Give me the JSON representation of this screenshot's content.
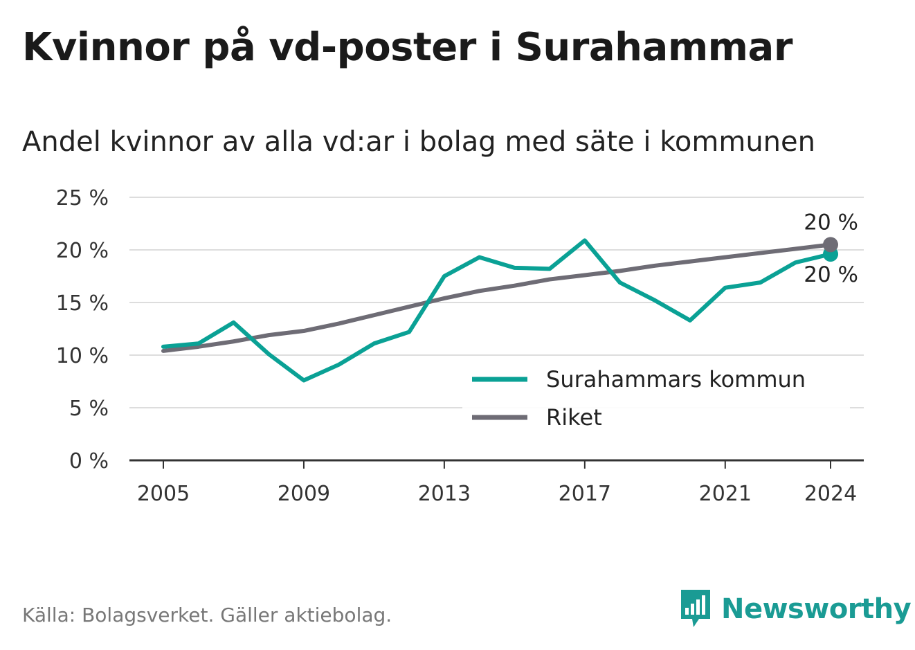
{
  "header": {
    "title": "Kvinnor på vd-poster i Surahammar",
    "subtitle": "Andel kvinnor av alla vd:ar i bolag med säte i kommunen"
  },
  "footer": {
    "source": "Källa: Bolagsverket. Gäller aktiebolag.",
    "brand": "Newsworthy"
  },
  "colors": {
    "surahammar": "#0aa195",
    "riket": "#6e6c75",
    "grid": "#dddddd",
    "axis": "#333333",
    "brand": "#1a9b94"
  },
  "chart_data": {
    "type": "line",
    "title": "Kvinnor på vd-poster i Surahammar",
    "subtitle": "Andel kvinnor av alla vd:ar i bolag med säte i kommunen",
    "xlabel": "",
    "ylabel": "",
    "x": [
      2005,
      2006,
      2007,
      2008,
      2009,
      2010,
      2011,
      2012,
      2013,
      2014,
      2015,
      2016,
      2017,
      2018,
      2019,
      2020,
      2021,
      2022,
      2023,
      2024
    ],
    "xticks": [
      2005,
      2009,
      2013,
      2017,
      2021,
      2024
    ],
    "xlim": [
      2005,
      2024
    ],
    "ylim": [
      0,
      25
    ],
    "yticks": [
      0,
      5,
      10,
      15,
      20,
      25
    ],
    "ytick_labels": [
      "0 %",
      "5 %",
      "10 %",
      "15 %",
      "20 %",
      "25 %"
    ],
    "grid": true,
    "legend_position": "bottom-right",
    "series": [
      {
        "name": "Surahammars kommun",
        "color": "#0aa195",
        "values": [
          10.8,
          11.1,
          13.1,
          10.1,
          7.6,
          9.1,
          11.1,
          12.2,
          17.5,
          19.3,
          18.3,
          18.2,
          20.9,
          16.9,
          15.2,
          13.3,
          16.4,
          16.9,
          18.8,
          19.6
        ],
        "end_label": "20 %"
      },
      {
        "name": "Riket",
        "color": "#6e6c75",
        "values": [
          10.4,
          10.8,
          11.3,
          11.9,
          12.3,
          13.0,
          13.8,
          14.6,
          15.4,
          16.1,
          16.6,
          17.2,
          17.6,
          18.0,
          18.5,
          18.9,
          19.3,
          19.7,
          20.1,
          20.5
        ],
        "end_label": "20 %"
      }
    ]
  }
}
